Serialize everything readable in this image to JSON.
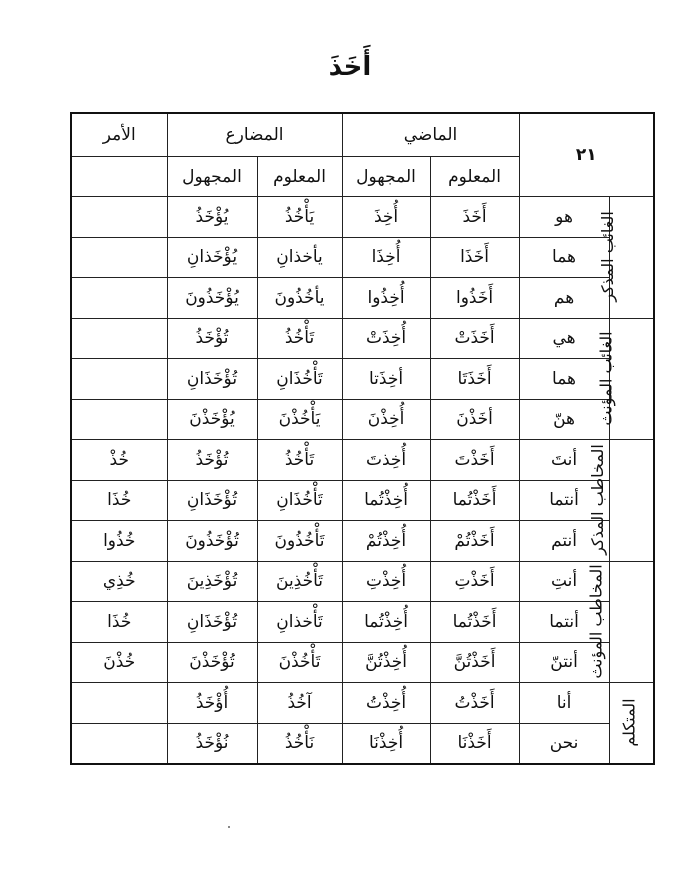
{
  "title": "أَخَذَ",
  "table_number": "٢١",
  "headers": {
    "past": "الماضي",
    "present": "المضارع",
    "imperative": "الأمر",
    "active": "المعلوم",
    "passive": "المجهول"
  },
  "groups": [
    {
      "label": "الغائب المذكر",
      "rows": [
        {
          "pronoun": "هو",
          "past_active": "أَخَذَ",
          "past_passive": "أُخِذَ",
          "present_active": "يَأْخُذُ",
          "present_passive": "يُؤْخَذُ",
          "imperative": ""
        },
        {
          "pronoun": "هما",
          "past_active": "أَخَذَا",
          "past_passive": "أُخِذَا",
          "present_active": "يأخذانِ",
          "present_passive": "يُؤْخَذانِ",
          "imperative": ""
        },
        {
          "pronoun": "هم",
          "past_active": "أَخَذُوا",
          "past_passive": "أُخِذُوا",
          "present_active": "يأخُذُونَ",
          "present_passive": "يُؤْخَذُونَ",
          "imperative": ""
        }
      ]
    },
    {
      "label": "الغائب المؤنث",
      "rows": [
        {
          "pronoun": "هي",
          "past_active": "أَخَذَتْ",
          "past_passive": "أُخِذَتْ",
          "present_active": "تَأْخُذُ",
          "present_passive": "تُؤْخَذُ",
          "imperative": ""
        },
        {
          "pronoun": "هما",
          "past_active": "أَخَذَتَا",
          "past_passive": "أخِذَتا",
          "present_active": "تَأْخُذَانِ",
          "present_passive": "تُؤْخَذَانِ",
          "imperative": ""
        },
        {
          "pronoun": "هنّ",
          "past_active": "أخَذْنَ",
          "past_passive": "أُخِذْنَ",
          "present_active": "يَأْخُذْنَ",
          "present_passive": "يُؤْخَذْنَ",
          "imperative": ""
        }
      ]
    },
    {
      "label": "المخاطب المذكر",
      "rows": [
        {
          "pronoun": "أنتَ",
          "past_active": "أَخَذْتَ",
          "past_passive": "أُخِذتَ",
          "present_active": "تَأْخُذُ",
          "present_passive": "تُؤْخَذُ",
          "imperative": "خُذْ"
        },
        {
          "pronoun": "أنتما",
          "past_active": "أَخَذْتُما",
          "past_passive": "أُخِذْتُما",
          "present_active": "تَأْخُذَانِ",
          "present_passive": "تُؤْخَذَانِ",
          "imperative": "خُذَا"
        },
        {
          "pronoun": "أنتم",
          "past_active": "أَخَذْتُمْ",
          "past_passive": "أُخِذْتُمْ",
          "present_active": "تَأْخُذُونَ",
          "present_passive": "تُؤْخَذُونَ",
          "imperative": "خُذُوا"
        }
      ]
    },
    {
      "label": "المخاطب المؤنث",
      "rows": [
        {
          "pronoun": "أنتِ",
          "past_active": "أَخَذْتِ",
          "past_passive": "أُخِذْتِ",
          "present_active": "تَأْخُذِينَ",
          "present_passive": "تُؤْخَذِينَ",
          "imperative": "خُذِي"
        },
        {
          "pronoun": "أنتما",
          "past_active": "أَخَذْتُما",
          "past_passive": "أُخِذْتُما",
          "present_active": "تَأْخذانِ",
          "present_passive": "تُؤْخَذَانِ",
          "imperative": "خُذَا"
        },
        {
          "pronoun": "أنتنّ",
          "past_active": "أَخَذْتُنَّ",
          "past_passive": "أُخِذْتُنَّ",
          "present_active": "تَأْخُذْنَ",
          "present_passive": "تُؤْخَذْنَ",
          "imperative": "خُذْنَ"
        }
      ]
    },
    {
      "label": "المتكلم",
      "rows": [
        {
          "pronoun": "أنا",
          "past_active": "أَخَذْتُ",
          "past_passive": "أُخِذْتُ",
          "present_active": "آخُذُ",
          "present_passive": "أُؤْخَذُ",
          "imperative": ""
        },
        {
          "pronoun": "نحن",
          "past_active": "أَخَذْنَا",
          "past_passive": "أُخِذْنَا",
          "present_active": "نَأْخُذُ",
          "present_passive": "نُؤْخَذُ",
          "imperative": ""
        }
      ]
    }
  ]
}
